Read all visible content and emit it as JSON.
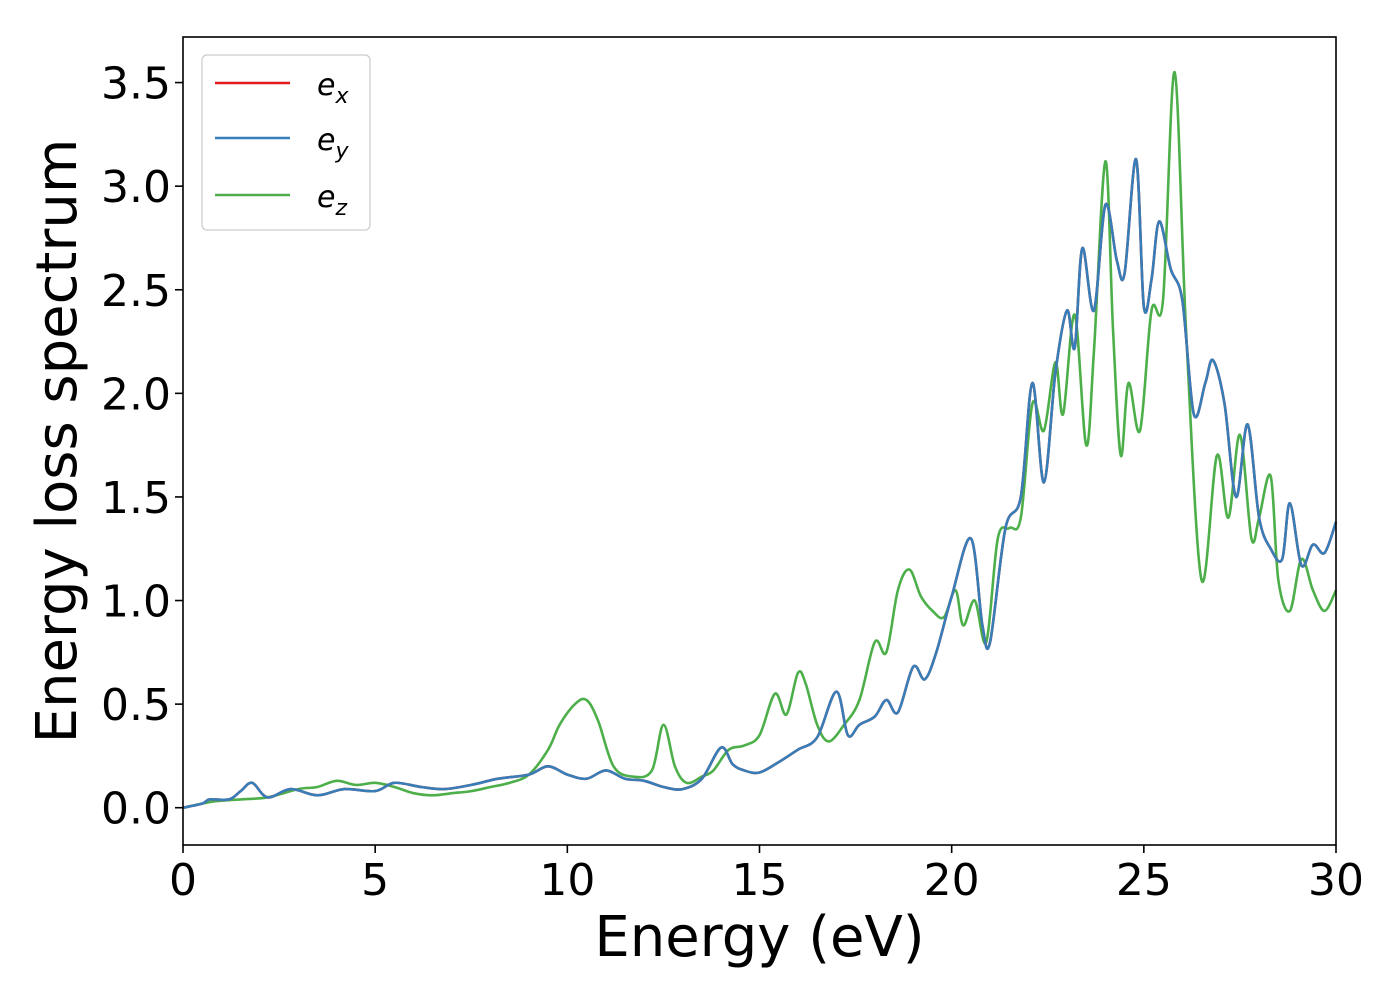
{
  "chart_data": {
    "type": "line",
    "title": "",
    "xlabel": "Energy (eV)",
    "ylabel": "Energy loss spectrum",
    "xlim": [
      0,
      30
    ],
    "ylim": [
      -0.18,
      3.72
    ],
    "xticks": [
      "0",
      "5",
      "10",
      "15",
      "20",
      "25",
      "30"
    ],
    "yticks": [
      "0.0",
      "0.5",
      "1.0",
      "1.5",
      "2.0",
      "2.5",
      "3.0",
      "3.5"
    ],
    "grid": false,
    "legend_position": "top-left",
    "series": [
      {
        "name": "e_x",
        "legend_base": "e",
        "legend_sub": "x",
        "color": "#e41a1c",
        "x": [
          0,
          0.5,
          0.7,
          1.2,
          1.5,
          1.8,
          2.2,
          2.8,
          3.5,
          4.2,
          5.0,
          5.5,
          6.2,
          6.8,
          7.5,
          8.2,
          9.0,
          9.5,
          10.0,
          10.5,
          11.0,
          11.5,
          12.0,
          12.5,
          13.0,
          13.5,
          14.0,
          14.3,
          14.6,
          15.0,
          15.5,
          16.0,
          16.5,
          17.0,
          17.3,
          17.6,
          18.0,
          18.3,
          18.6,
          19.0,
          19.3,
          19.6,
          20.0,
          20.5,
          20.8,
          21.0,
          21.4,
          21.8,
          22.1,
          22.4,
          22.7,
          23.0,
          23.2,
          23.4,
          23.7,
          24.0,
          24.3,
          24.5,
          24.8,
          25.0,
          25.2,
          25.4,
          25.7,
          26.0,
          26.3,
          26.6,
          26.8,
          27.1,
          27.4,
          27.7,
          28.0,
          28.3,
          28.6,
          28.8,
          29.1,
          29.4,
          29.7,
          30.0
        ],
        "values": [
          0,
          0.02,
          0.04,
          0.04,
          0.08,
          0.12,
          0.05,
          0.09,
          0.06,
          0.09,
          0.08,
          0.12,
          0.1,
          0.09,
          0.11,
          0.14,
          0.16,
          0.2,
          0.16,
          0.14,
          0.18,
          0.14,
          0.13,
          0.1,
          0.09,
          0.14,
          0.29,
          0.21,
          0.18,
          0.17,
          0.22,
          0.28,
          0.34,
          0.56,
          0.35,
          0.4,
          0.44,
          0.52,
          0.46,
          0.68,
          0.62,
          0.75,
          1.02,
          1.3,
          0.88,
          0.8,
          1.35,
          1.5,
          2.05,
          1.57,
          2.1,
          2.4,
          2.22,
          2.7,
          2.4,
          2.91,
          2.64,
          2.58,
          3.13,
          2.42,
          2.55,
          2.83,
          2.6,
          2.45,
          1.9,
          2.05,
          2.16,
          1.95,
          1.5,
          1.85,
          1.4,
          1.25,
          1.2,
          1.47,
          1.17,
          1.27,
          1.23,
          1.38
        ]
      },
      {
        "name": "e_y",
        "legend_base": "e",
        "legend_sub": "y",
        "color": "#377eb8",
        "x": [
          0,
          0.5,
          0.7,
          1.2,
          1.5,
          1.8,
          2.2,
          2.8,
          3.5,
          4.2,
          5.0,
          5.5,
          6.2,
          6.8,
          7.5,
          8.2,
          9.0,
          9.5,
          10.0,
          10.5,
          11.0,
          11.5,
          12.0,
          12.5,
          13.0,
          13.5,
          14.0,
          14.3,
          14.6,
          15.0,
          15.5,
          16.0,
          16.5,
          17.0,
          17.3,
          17.6,
          18.0,
          18.3,
          18.6,
          19.0,
          19.3,
          19.6,
          20.0,
          20.5,
          20.8,
          21.0,
          21.4,
          21.8,
          22.1,
          22.4,
          22.7,
          23.0,
          23.2,
          23.4,
          23.7,
          24.0,
          24.3,
          24.5,
          24.8,
          25.0,
          25.2,
          25.4,
          25.7,
          26.0,
          26.3,
          26.6,
          26.8,
          27.1,
          27.4,
          27.7,
          28.0,
          28.3,
          28.6,
          28.8,
          29.1,
          29.4,
          29.7,
          30.0
        ],
        "values": [
          0,
          0.02,
          0.04,
          0.04,
          0.08,
          0.12,
          0.05,
          0.09,
          0.06,
          0.09,
          0.08,
          0.12,
          0.1,
          0.09,
          0.11,
          0.14,
          0.16,
          0.2,
          0.16,
          0.14,
          0.18,
          0.14,
          0.13,
          0.1,
          0.09,
          0.14,
          0.29,
          0.21,
          0.18,
          0.17,
          0.22,
          0.28,
          0.34,
          0.56,
          0.35,
          0.4,
          0.44,
          0.52,
          0.46,
          0.68,
          0.62,
          0.75,
          1.02,
          1.3,
          0.88,
          0.8,
          1.35,
          1.5,
          2.05,
          1.57,
          2.1,
          2.4,
          2.22,
          2.7,
          2.4,
          2.91,
          2.64,
          2.58,
          3.13,
          2.42,
          2.55,
          2.83,
          2.6,
          2.45,
          1.9,
          2.05,
          2.16,
          1.95,
          1.5,
          1.85,
          1.4,
          1.25,
          1.2,
          1.47,
          1.17,
          1.27,
          1.23,
          1.38
        ]
      },
      {
        "name": "e_z",
        "legend_base": "e",
        "legend_sub": "z",
        "color": "#4daf4a",
        "x": [
          0,
          0.8,
          1.5,
          2.2,
          3.0,
          3.5,
          4.0,
          4.5,
          5.0,
          5.5,
          6.0,
          6.5,
          7.0,
          7.5,
          8.0,
          8.5,
          9.0,
          9.5,
          9.8,
          10.2,
          10.5,
          10.8,
          11.2,
          11.7,
          12.2,
          12.5,
          12.8,
          13.1,
          13.5,
          13.8,
          14.2,
          14.6,
          15.0,
          15.4,
          15.7,
          16.0,
          16.2,
          16.5,
          16.8,
          17.2,
          17.6,
          18.0,
          18.3,
          18.6,
          18.9,
          19.2,
          19.5,
          19.8,
          20.1,
          20.3,
          20.6,
          20.9,
          21.2,
          21.5,
          21.8,
          22.1,
          22.4,
          22.7,
          22.9,
          23.2,
          23.5,
          23.7,
          24.0,
          24.2,
          24.4,
          24.6,
          24.9,
          25.2,
          25.5,
          25.8,
          26.1,
          26.5,
          26.9,
          27.2,
          27.5,
          27.8,
          28.0,
          28.3,
          28.5,
          28.8,
          29.1,
          29.4,
          29.7,
          30.0
        ],
        "values": [
          0,
          0.03,
          0.04,
          0.05,
          0.09,
          0.1,
          0.13,
          0.11,
          0.12,
          0.1,
          0.07,
          0.06,
          0.07,
          0.08,
          0.1,
          0.12,
          0.16,
          0.28,
          0.4,
          0.5,
          0.52,
          0.42,
          0.2,
          0.15,
          0.18,
          0.4,
          0.2,
          0.12,
          0.15,
          0.18,
          0.28,
          0.3,
          0.35,
          0.55,
          0.45,
          0.65,
          0.6,
          0.4,
          0.32,
          0.4,
          0.52,
          0.8,
          0.75,
          1.05,
          1.15,
          1.02,
          0.95,
          0.92,
          1.05,
          0.88,
          1.0,
          0.8,
          1.3,
          1.35,
          1.4,
          1.95,
          1.82,
          2.15,
          1.9,
          2.38,
          1.75,
          2.2,
          3.12,
          2.3,
          1.7,
          2.05,
          1.82,
          2.4,
          2.45,
          3.55,
          2.3,
          1.1,
          1.7,
          1.4,
          1.8,
          1.3,
          1.4,
          1.6,
          1.1,
          0.95,
          1.2,
          1.05,
          0.95,
          1.05
        ]
      }
    ]
  }
}
